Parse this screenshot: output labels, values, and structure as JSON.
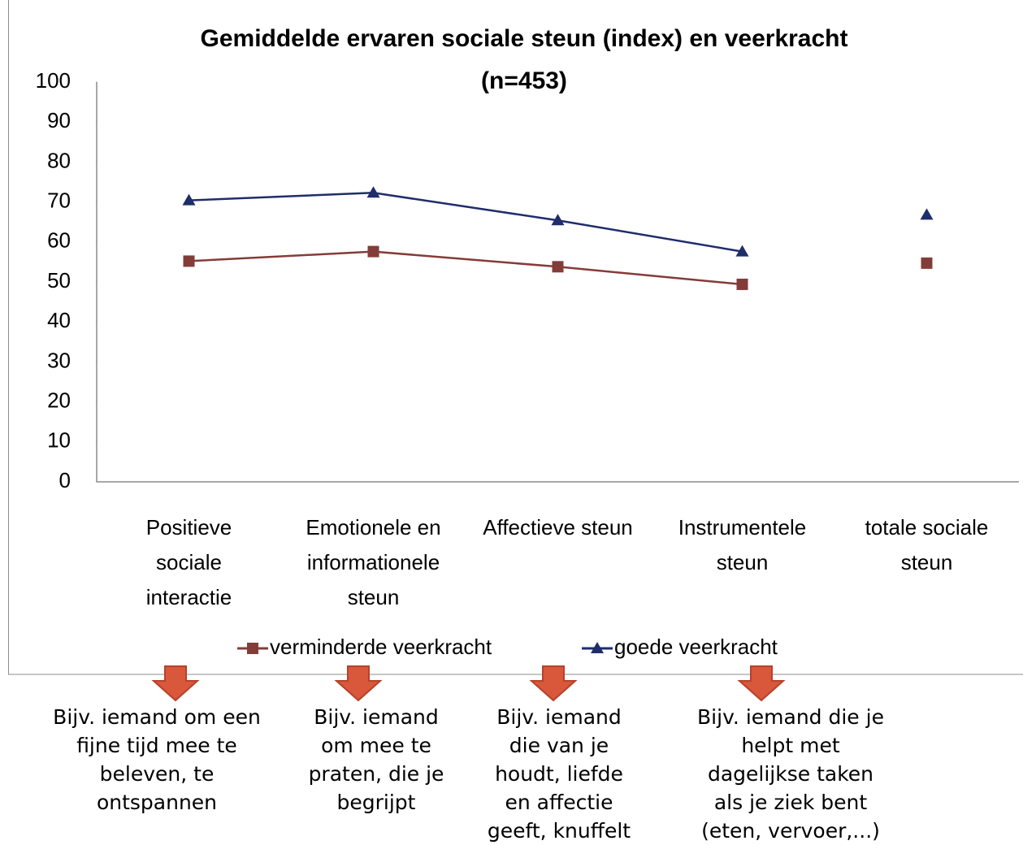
{
  "chart_data": {
    "type": "line",
    "title": "Gemiddelde ervaren sociale steun (index) en veerkracht\n(n=453)",
    "categories": [
      "Positieve\nsociale\ninteractie",
      "Emotionele en\ninformationele\nsteun",
      "Affectieve steun",
      "Instrumentele\nsteun",
      "totale sociale\nsteun"
    ],
    "series": [
      {
        "name": "verminderde veerkracht",
        "color": "#843c39",
        "marker": "square",
        "values": [
          55.2,
          57.6,
          53.8,
          49.4,
          54.7
        ]
      },
      {
        "name": "goede veerkracht",
        "color": "#1f2d6b",
        "marker": "triangle",
        "values": [
          70.4,
          72.3,
          65.4,
          57.6,
          66.8
        ]
      }
    ],
    "ylim": [
      0,
      100
    ],
    "yticks": [
      0,
      10,
      20,
      30,
      40,
      50,
      60,
      70,
      80,
      90,
      100
    ],
    "grid": false,
    "legend": "bottom"
  },
  "annotations": [
    "Bijv. iemand om een\nfijne tijd mee te\nbeleven, te\nontspannen",
    "Bijv. iemand\nom mee te\npraten, die je\nbegrijpt",
    "Bijv. iemand\ndie van je\nhoudt, liefde\nen affectie\ngeeft, knuffelt",
    "Bijv. iemand die je\nhelpt met\ndagelijkse taken\nals je ziek bent\n(eten, vervoer,...)"
  ]
}
